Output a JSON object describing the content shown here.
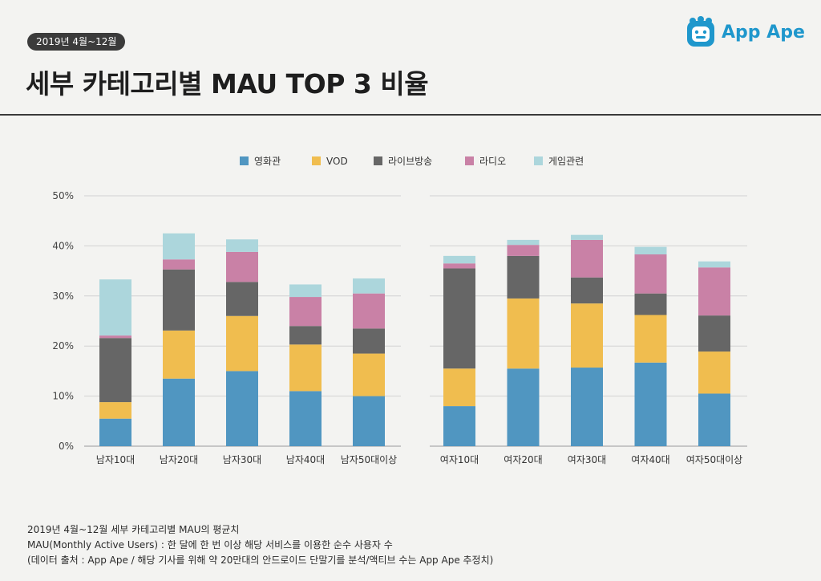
{
  "header": {
    "period_badge": "2019년 4월~12월",
    "title": "세부 카테고리별 MAU TOP 3 비율",
    "brand": "App Ape"
  },
  "colors": {
    "영화관": "#5096c1",
    "VOD": "#f0bd4f",
    "라이브방송": "#666666",
    "라디오": "#c981a6",
    "게임관련": "#acd6dc"
  },
  "chart_data": [
    {
      "type": "bar",
      "stacked": true,
      "panel": "male",
      "categories": [
        "남자10대",
        "남자20대",
        "남자30대",
        "남자40대",
        "남자50대이상"
      ],
      "series": [
        {
          "name": "영화관",
          "values": [
            5.5,
            13.5,
            15.0,
            11.0,
            10.0
          ]
        },
        {
          "name": "VOD",
          "values": [
            3.3,
            9.6,
            11.0,
            9.3,
            8.5
          ]
        },
        {
          "name": "라이브방송",
          "values": [
            12.8,
            12.2,
            6.8,
            3.7,
            5.0
          ]
        },
        {
          "name": "라디오",
          "values": [
            0.5,
            2.0,
            6.0,
            5.8,
            7.0
          ]
        },
        {
          "name": "게임관련",
          "values": [
            11.2,
            5.2,
            2.5,
            2.5,
            3.0
          ]
        }
      ],
      "yticks": [
        "0%",
        "10%",
        "20%",
        "30%",
        "40%",
        "50%"
      ],
      "ylim": [
        0,
        50
      ],
      "ylabel": "",
      "grid": true
    },
    {
      "type": "bar",
      "stacked": true,
      "panel": "female",
      "categories": [
        "여자10대",
        "여자20대",
        "여자30대",
        "여자40대",
        "여자50대이상"
      ],
      "series": [
        {
          "name": "영화관",
          "values": [
            8.0,
            15.5,
            15.7,
            16.7,
            10.5
          ]
        },
        {
          "name": "VOD",
          "values": [
            7.5,
            14.0,
            12.8,
            9.5,
            8.4
          ]
        },
        {
          "name": "라이브방송",
          "values": [
            20.0,
            8.5,
            5.2,
            4.3,
            7.2
          ]
        },
        {
          "name": "라디오",
          "values": [
            1.0,
            2.2,
            7.5,
            7.8,
            9.6
          ]
        },
        {
          "name": "게임관련",
          "values": [
            1.5,
            1.0,
            1.0,
            1.5,
            1.2
          ]
        }
      ],
      "ylim": [
        0,
        50
      ],
      "grid": true
    }
  ],
  "legend": [
    "영화관",
    "VOD",
    "라이브방송",
    "라디오",
    "게임관련"
  ],
  "footnotes": [
    "2019년 4월~12월 세부 카테고리별 MAU의 평균치",
    "MAU(Monthly Active Users) : 한 달에 한 번 이상 해당 서비스를 이용한 순수 사용자 수",
    "(데이터 출처 : App Ape / 해당 기사를 위해 약 20만대의 안드로이드 단말기를 분석/액티브 수는 App Ape 추정치)"
  ]
}
